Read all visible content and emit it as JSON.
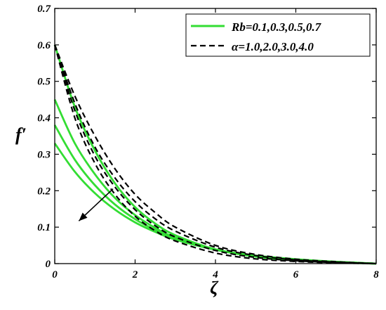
{
  "chart_data": {
    "type": "line",
    "xlabel": "ζ",
    "ylabel": "f′",
    "xlim": [
      0,
      8
    ],
    "ylim": [
      0,
      0.7
    ],
    "xticks": [
      "0",
      "2",
      "4",
      "6",
      "8"
    ],
    "yticks": [
      "0",
      "0.1",
      "0.2",
      "0.3",
      "0.4",
      "0.5",
      "0.6",
      "0.7"
    ],
    "grid": false,
    "legend_position": "top-right",
    "legend": [
      {
        "label": "Rb=0.1,0.3,0.5,0.7",
        "color": "#33dd33",
        "style": "solid"
      },
      {
        "label": "α=1.0,2.0,3.0,4.0",
        "color": "#000000",
        "style": "dashed"
      }
    ],
    "series": [
      {
        "group": "Rb",
        "style": "solid",
        "color": "#33dd33",
        "x": [
          0,
          0.5,
          1,
          1.5,
          2,
          2.5,
          3,
          4,
          5,
          6,
          7,
          8
        ],
        "y": [
          0.6,
          0.43,
          0.31,
          0.22,
          0.155,
          0.11,
          0.078,
          0.039,
          0.019,
          0.009,
          0.004,
          0.0
        ]
      },
      {
        "group": "Rb",
        "style": "solid",
        "color": "#33dd33",
        "x": [
          0,
          0.5,
          1,
          1.5,
          2,
          2.5,
          3,
          4,
          5,
          6,
          7,
          8
        ],
        "y": [
          0.45,
          0.33,
          0.245,
          0.18,
          0.133,
          0.098,
          0.072,
          0.039,
          0.02,
          0.01,
          0.004,
          0.0
        ]
      },
      {
        "group": "Rb",
        "style": "solid",
        "color": "#33dd33",
        "x": [
          0,
          0.5,
          1,
          1.5,
          2,
          2.5,
          3,
          4,
          5,
          6,
          7,
          8
        ],
        "y": [
          0.38,
          0.285,
          0.215,
          0.162,
          0.122,
          0.092,
          0.069,
          0.038,
          0.021,
          0.011,
          0.005,
          0.0
        ]
      },
      {
        "group": "Rb",
        "style": "solid",
        "color": "#33dd33",
        "x": [
          0,
          0.5,
          1,
          1.5,
          2,
          2.5,
          3,
          4,
          5,
          6,
          7,
          8
        ],
        "y": [
          0.33,
          0.252,
          0.193,
          0.148,
          0.113,
          0.087,
          0.066,
          0.038,
          0.022,
          0.012,
          0.005,
          0.0
        ]
      },
      {
        "group": "alpha",
        "style": "dashed",
        "color": "#000000",
        "x": [
          0,
          0.5,
          1,
          1.5,
          2,
          2.5,
          3,
          4,
          5,
          6,
          7,
          8
        ],
        "y": [
          0.6,
          0.46,
          0.35,
          0.26,
          0.19,
          0.14,
          0.1,
          0.05,
          0.025,
          0.012,
          0.005,
          0.0
        ]
      },
      {
        "group": "alpha",
        "style": "dashed",
        "color": "#000000",
        "x": [
          0,
          0.5,
          1,
          1.5,
          2,
          2.5,
          3,
          4,
          5,
          6,
          7,
          8
        ],
        "y": [
          0.6,
          0.44,
          0.32,
          0.235,
          0.17,
          0.123,
          0.089,
          0.045,
          0.022,
          0.01,
          0.004,
          0.0
        ]
      },
      {
        "group": "alpha",
        "style": "dashed",
        "color": "#000000",
        "x": [
          0,
          0.5,
          1,
          1.5,
          2,
          2.5,
          3,
          4,
          5,
          6,
          7,
          8
        ],
        "y": [
          0.6,
          0.42,
          0.295,
          0.21,
          0.148,
          0.104,
          0.073,
          0.036,
          0.017,
          0.008,
          0.003,
          0.0
        ]
      },
      {
        "group": "alpha",
        "style": "dashed",
        "color": "#000000",
        "x": [
          0,
          0.5,
          1,
          1.5,
          2,
          2.5,
          3,
          4,
          5,
          6,
          7,
          8
        ],
        "y": [
          0.6,
          0.4,
          0.275,
          0.19,
          0.13,
          0.09,
          0.062,
          0.029,
          0.013,
          0.006,
          0.002,
          0.0
        ]
      }
    ],
    "annotations": [
      {
        "type": "arrow",
        "from": {
          "x": 1.45,
          "y": 0.205
        },
        "to": {
          "x": 0.6,
          "y": 0.117
        }
      }
    ]
  }
}
